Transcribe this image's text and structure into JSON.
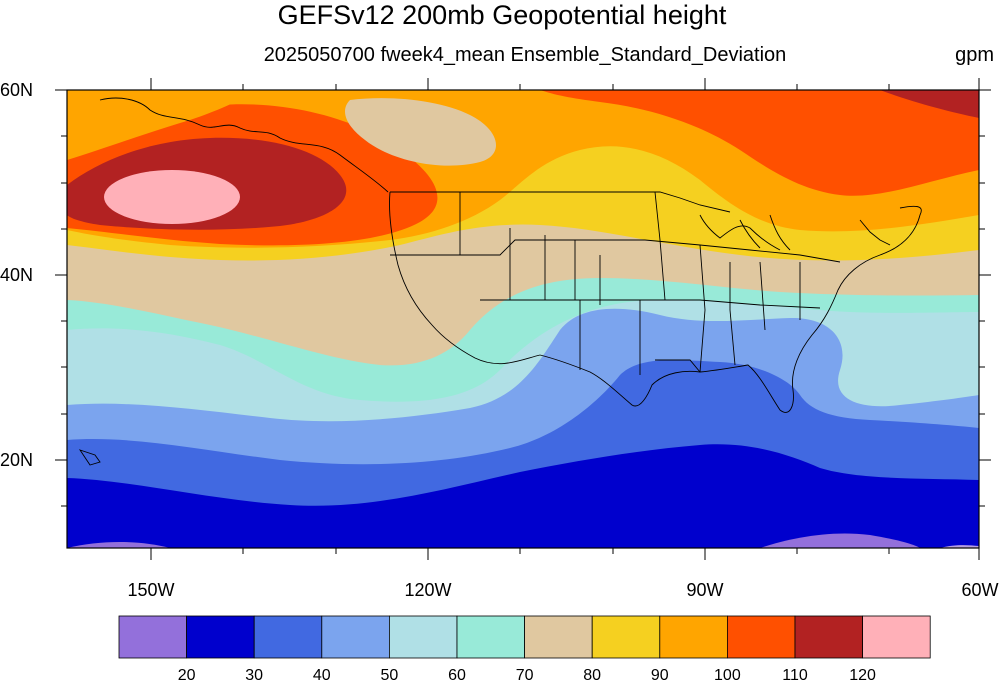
{
  "title": "GEFSv12 200mb Geopotential height",
  "subtitle": "2025050700 fweek4_mean Ensemble_Standard_Deviation",
  "units": "gpm",
  "lat_labels": [
    "60N",
    "40N",
    "20N"
  ],
  "lon_labels": [
    "150W",
    "120W",
    "90W",
    "60W"
  ],
  "colorbar": {
    "colors": [
      "#9370db",
      "#0000cd",
      "#4169e1",
      "#7ba4ee",
      "#b0e0e6",
      "#98ead8",
      "#e0c8a0",
      "#f5d020",
      "#ffa500",
      "#ff5000",
      "#b22222",
      "#ffb0b8"
    ],
    "labels": [
      "20",
      "30",
      "40",
      "50",
      "60",
      "70",
      "80",
      "90",
      "100",
      "110",
      "120"
    ]
  },
  "map_extent": {
    "lon_min": -160,
    "lon_max": -60,
    "lat_min": 10,
    "lat_max": 60
  }
}
